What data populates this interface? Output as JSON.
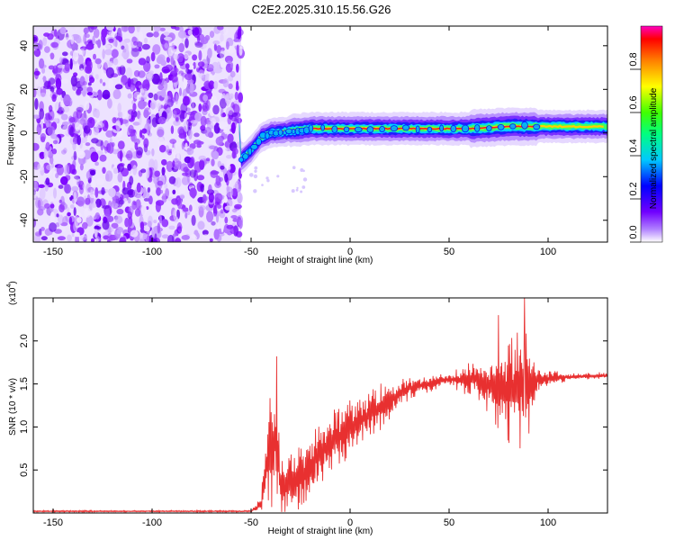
{
  "title": "C2E2.2025.310.15.56.G26",
  "chart_data": [
    {
      "type": "heatmap",
      "xlabel": "Height of straight line (km)",
      "ylabel": "Frequency (Hz)",
      "xlim": [
        -160,
        130
      ],
      "ylim": [
        -50,
        49
      ],
      "x_ticks": [
        -150,
        -100,
        -50,
        0,
        50,
        100
      ],
      "y_ticks": [
        -40,
        -20,
        0,
        20,
        40
      ],
      "colorbar": {
        "label": "Normalized spectral amplitude",
        "range": [
          0,
          1
        ],
        "ticks": [
          0.0,
          0.2,
          0.4,
          0.6,
          0.8
        ],
        "tick_labels": [
          "0.0",
          "0.2",
          "0.4",
          "0.6",
          "0.8"
        ],
        "colors": [
          "#f2ecff",
          "#8000ff",
          "#0000ff",
          "#00ffff",
          "#00ff00",
          "#ffff00",
          "#ff8000",
          "#ff0000",
          "#ff00ff"
        ]
      },
      "noise_region_x": [
        -160,
        -55
      ],
      "signal_track": [
        {
          "x": -55,
          "y": -12
        },
        {
          "x": -50,
          "y": -8
        },
        {
          "x": -45,
          "y": -2
        },
        {
          "x": -40,
          "y": 0
        },
        {
          "x": -30,
          "y": 1
        },
        {
          "x": -20,
          "y": 2
        },
        {
          "x": 0,
          "y": 2
        },
        {
          "x": 20,
          "y": 2
        },
        {
          "x": 40,
          "y": 2
        },
        {
          "x": 60,
          "y": 2
        },
        {
          "x": 80,
          "y": 3
        },
        {
          "x": 100,
          "y": 3
        },
        {
          "x": 130,
          "y": 3
        }
      ]
    },
    {
      "type": "line",
      "xlabel": "Height of straight line (km)",
      "ylabel": "SNR (10 * v/v)",
      "yscale_label": "(x10",
      "yscale_exp": "4",
      "yscale_close": ")",
      "xlim": [
        -160,
        130
      ],
      "ylim": [
        0,
        2.5
      ],
      "x_ticks": [
        -150,
        -100,
        -50,
        0,
        50,
        100
      ],
      "y_ticks": [
        0.5,
        1.0,
        1.5,
        2.0
      ],
      "y_tick_labels": [
        "0.5",
        "1.0",
        "1.5",
        "2.0"
      ],
      "color": "#e83030",
      "series_envelope": [
        {
          "x": -160,
          "y": 0.02,
          "amp": 0.01
        },
        {
          "x": -50,
          "y": 0.02,
          "amp": 0.01
        },
        {
          "x": -45,
          "y": 0.1,
          "amp": 0.08
        },
        {
          "x": -42,
          "y": 0.6,
          "amp": 0.6
        },
        {
          "x": -38,
          "y": 0.9,
          "amp": 0.8
        },
        {
          "x": -35,
          "y": 0.3,
          "amp": 0.3
        },
        {
          "x": -25,
          "y": 0.4,
          "amp": 0.4
        },
        {
          "x": -15,
          "y": 0.7,
          "amp": 0.4
        },
        {
          "x": -5,
          "y": 0.9,
          "amp": 0.35
        },
        {
          "x": 10,
          "y": 1.15,
          "amp": 0.3
        },
        {
          "x": 20,
          "y": 1.3,
          "amp": 0.25
        },
        {
          "x": 30,
          "y": 1.45,
          "amp": 0.12
        },
        {
          "x": 50,
          "y": 1.55,
          "amp": 0.08
        },
        {
          "x": 65,
          "y": 1.55,
          "amp": 0.25
        },
        {
          "x": 75,
          "y": 1.45,
          "amp": 0.55
        },
        {
          "x": 88,
          "y": 1.45,
          "amp": 0.8
        },
        {
          "x": 95,
          "y": 1.55,
          "amp": 0.15
        },
        {
          "x": 110,
          "y": 1.58,
          "amp": 0.04
        },
        {
          "x": 130,
          "y": 1.6,
          "amp": 0.04
        }
      ],
      "peaks": [
        {
          "x": -37,
          "y": 1.82
        },
        {
          "x": 75,
          "y": 2.3
        },
        {
          "x": 88,
          "y": 2.5
        }
      ]
    }
  ]
}
